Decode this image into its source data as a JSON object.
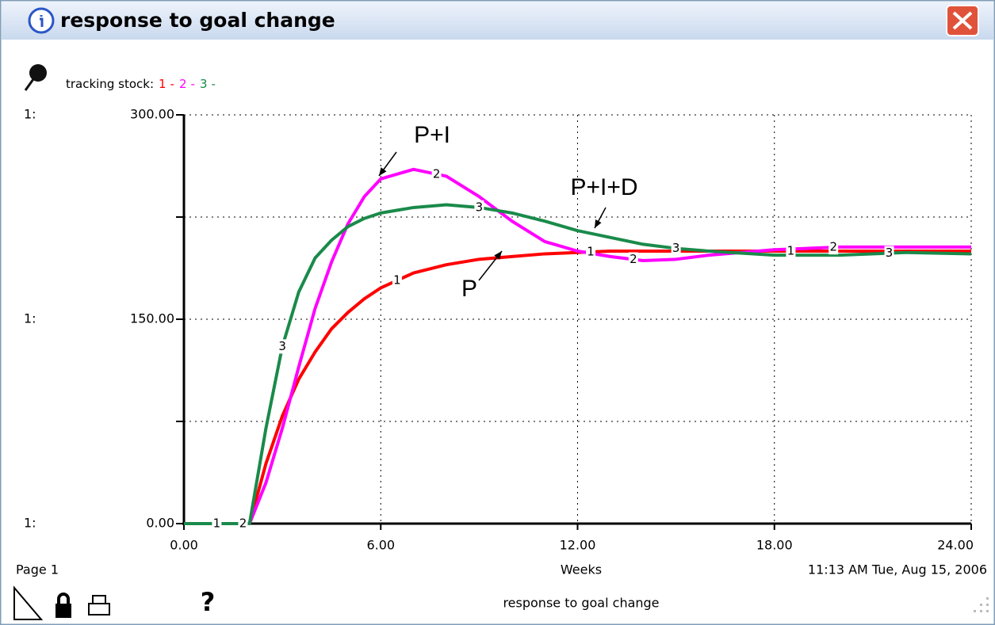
{
  "window": {
    "title": "response to goal change"
  },
  "chart_data": {
    "type": "line",
    "legend_title": "tracking stock:",
    "legend_separator": "-",
    "axis_prefix": "1:",
    "x": [
      0,
      1,
      2,
      2.5,
      3,
      3.5,
      4,
      4.5,
      5,
      5.5,
      6,
      7,
      8,
      9,
      10,
      11,
      12,
      13,
      14,
      15,
      16,
      18,
      20,
      22,
      24
    ],
    "series": [
      {
        "name": "1",
        "color": "#ff0000",
        "values": [
          0,
          0,
          0,
          44,
          79,
          106,
          126,
          143,
          155,
          165,
          173,
          184,
          190,
          194,
          196,
          198,
          199,
          200,
          200,
          200,
          200,
          200,
          200,
          200,
          200
        ]
      },
      {
        "name": "2",
        "color": "#ff00ff",
        "values": [
          0,
          0,
          0,
          30,
          70,
          115,
          158,
          192,
          220,
          240,
          253,
          260,
          255,
          240,
          222,
          207,
          200,
          196,
          193,
          194,
          197,
          201,
          203,
          203,
          203
        ]
      },
      {
        "name": "3",
        "color": "#1a8a4a",
        "values": [
          0,
          0,
          0,
          70,
          130,
          170,
          195,
          208,
          218,
          224,
          228,
          232,
          234,
          232,
          228,
          222,
          215,
          210,
          205,
          202,
          200,
          197,
          197,
          199,
          198
        ]
      }
    ],
    "xlim": [
      0,
      24
    ],
    "xticks": [
      {
        "value": 0,
        "label": "0.00"
      },
      {
        "value": 6,
        "label": "6.00"
      },
      {
        "value": 12,
        "label": "12.00"
      },
      {
        "value": 18,
        "label": "18.00"
      },
      {
        "value": 24,
        "label": "24.00"
      }
    ],
    "ylim": [
      0,
      300
    ],
    "yticks": [
      {
        "value": 0,
        "label": "0.00"
      },
      {
        "value": 150,
        "label": "150.00"
      },
      {
        "value": 300,
        "label": "300.00"
      }
    ],
    "yminor": [
      75,
      225
    ],
    "xlabel": "Weeks",
    "grid": true,
    "annotations": [
      "P+I",
      "P+I+D",
      "P"
    ]
  },
  "footer": {
    "page": "Page 1",
    "timestamp": "11:13 AM  Tue, Aug 15, 2006",
    "help": "?",
    "caption": "response to goal change"
  }
}
